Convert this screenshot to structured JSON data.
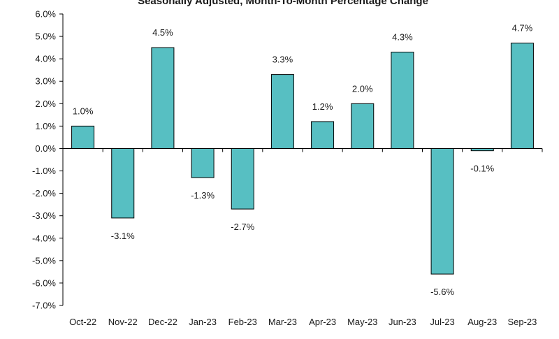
{
  "chart_data": {
    "type": "bar",
    "subtitle": "Seasonally Adjusted,  Month-To-Month Percentage Change",
    "categories": [
      "Oct-22",
      "Nov-22",
      "Dec-22",
      "Jan-23",
      "Feb-23",
      "Mar-23",
      "Apr-23",
      "May-23",
      "Jun-23",
      "Jul-23",
      "Aug-23",
      "Sep-23"
    ],
    "values": [
      1.0,
      -3.1,
      4.5,
      -1.3,
      -2.7,
      3.3,
      1.2,
      2.0,
      4.3,
      -5.6,
      -0.1,
      4.7
    ],
    "value_labels": [
      "1.0%",
      "-3.1%",
      "4.5%",
      "-1.3%",
      "-2.7%",
      "3.3%",
      "1.2%",
      "2.0%",
      "4.3%",
      "-5.6%",
      "-0.1%",
      "4.7%"
    ],
    "ylim": [
      -7.0,
      6.0
    ],
    "y_ticks": [
      6.0,
      5.0,
      4.0,
      3.0,
      2.0,
      1.0,
      0.0,
      -1.0,
      -2.0,
      -3.0,
      -4.0,
      -5.0,
      -6.0,
      -7.0
    ],
    "y_tick_labels": [
      "6.0%",
      "5.0%",
      "4.0%",
      "3.0%",
      "2.0%",
      "1.0%",
      "0.0%",
      "-1.0%",
      "-2.0%",
      "-3.0%",
      "-4.0%",
      "-5.0%",
      "-6.0%",
      "-7.0%"
    ],
    "xlabel": "",
    "ylabel": "",
    "grid": false,
    "legend": "none",
    "bar_color": "#57bfc2",
    "bar_border_color": "#000000"
  }
}
